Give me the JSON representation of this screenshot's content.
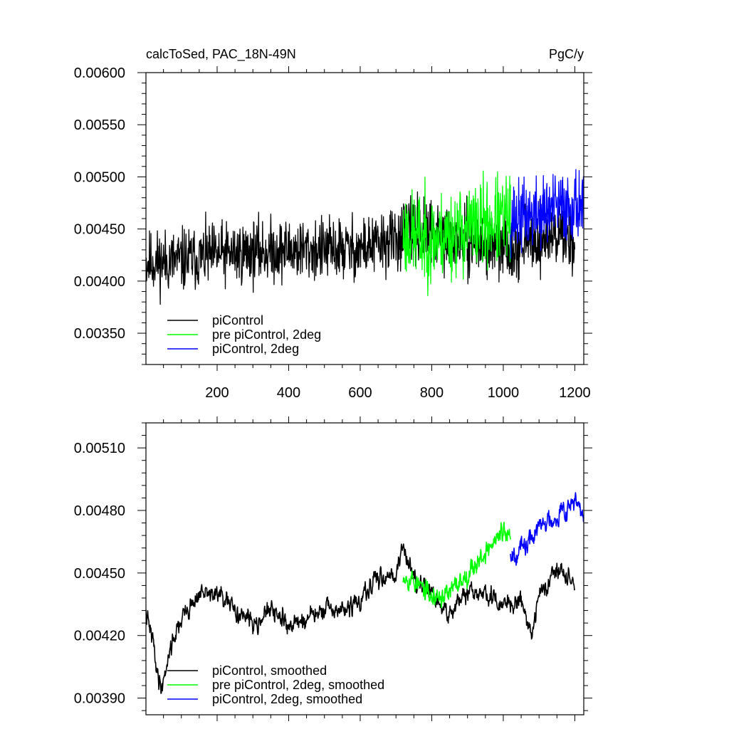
{
  "chart_data": [
    {
      "type": "line",
      "title": "calcToSed, PAC_18N-49N",
      "units": "PgC/y",
      "xlim": [
        1,
        1225
      ],
      "ylim": [
        0.0032,
        0.006
      ],
      "xticks": [
        200,
        400,
        600,
        800,
        1000,
        1200
      ],
      "xtick_labels": [
        "200",
        "400",
        "600",
        "800",
        "1000",
        "1200"
      ],
      "yticks": [
        0.0035,
        0.004,
        0.0045,
        0.005,
        0.0055,
        0.006
      ],
      "ytick_labels": [
        "0.00350",
        "0.00400",
        "0.00450",
        "0.00500",
        "0.00550",
        "0.00600"
      ],
      "legend_position": "bottom-left",
      "series": [
        {
          "name": "piControl",
          "color": "#000000",
          "x_start": 1,
          "x_end": 1200,
          "anchors_x": [
            1,
            100,
            200,
            300,
            400,
            500,
            600,
            650,
            700,
            720,
            760,
            800,
            850,
            900,
            950,
            1000,
            1050,
            1100,
            1150,
            1200
          ],
          "anchors_y": [
            0.00418,
            0.0042,
            0.00425,
            0.00428,
            0.0043,
            0.0043,
            0.00431,
            0.00435,
            0.0044,
            0.00445,
            0.00448,
            0.00445,
            0.0044,
            0.00438,
            0.00435,
            0.00433,
            0.00436,
            0.0044,
            0.00445,
            0.0044
          ],
          "noise": 0.00025,
          "seed": 11
        },
        {
          "name": "pre piControl, 2deg",
          "color": "#00ff00",
          "x_start": 720,
          "x_end": 1020,
          "anchors_x": [
            720,
            800,
            900,
            1020
          ],
          "anchors_y": [
            0.00445,
            0.0044,
            0.0045,
            0.0046
          ],
          "noise": 0.00035,
          "seed": 23
        },
        {
          "name": "piControl, 2deg",
          "color": "#0000ff",
          "x_start": 1020,
          "x_end": 1225,
          "anchors_x": [
            1020,
            1100,
            1150,
            1225
          ],
          "anchors_y": [
            0.0046,
            0.00465,
            0.0047,
            0.00475
          ],
          "noise": 0.00028,
          "seed": 37
        }
      ]
    },
    {
      "type": "line",
      "title": "",
      "xlim": [
        1,
        1225
      ],
      "ylim": [
        0.00382,
        0.00522
      ],
      "xticks": [
        200,
        400,
        600,
        800,
        1000,
        1200
      ],
      "xtick_labels": [],
      "yticks": [
        0.0039,
        0.0042,
        0.0045,
        0.0048,
        0.0051
      ],
      "ytick_labels": [
        "0.00390",
        "0.00420",
        "0.00450",
        "0.00480",
        "0.00510"
      ],
      "legend_position": "bottom-left",
      "series": [
        {
          "name": "piControl, smoothed",
          "color": "#000000",
          "x_start": 1,
          "x_end": 1200,
          "anchors_x": [
            1,
            20,
            35,
            45,
            70,
            100,
            150,
            200,
            250,
            300,
            350,
            400,
            450,
            500,
            550,
            600,
            650,
            700,
            720,
            760,
            800,
            840,
            900,
            950,
            1000,
            1050,
            1080,
            1100,
            1150,
            1200
          ],
          "anchors_y": [
            0.0043,
            0.00418,
            0.004,
            0.00395,
            0.00415,
            0.00428,
            0.0044,
            0.0044,
            0.00432,
            0.00426,
            0.00432,
            0.00425,
            0.00428,
            0.00432,
            0.00432,
            0.00436,
            0.00448,
            0.0045,
            0.00462,
            0.00445,
            0.0044,
            0.0043,
            0.0044,
            0.0044,
            0.00434,
            0.00438,
            0.0042,
            0.0044,
            0.00452,
            0.00445
          ],
          "noise": 7e-05,
          "seed": 41
        },
        {
          "name": "pre piControl, 2deg, smoothed",
          "color": "#00ff00",
          "x_start": 720,
          "x_end": 1020,
          "anchors_x": [
            720,
            760,
            800,
            850,
            900,
            950,
            1000,
            1020
          ],
          "anchors_y": [
            0.0045,
            0.00445,
            0.00438,
            0.0044,
            0.0045,
            0.0046,
            0.0047,
            0.00465
          ],
          "noise": 8e-05,
          "seed": 53
        },
        {
          "name": "piControl, 2deg, smoothed",
          "color": "#0000ff",
          "x_start": 1020,
          "x_end": 1225,
          "anchors_x": [
            1020,
            1060,
            1100,
            1150,
            1200,
            1225
          ],
          "anchors_y": [
            0.0046,
            0.00462,
            0.00472,
            0.00478,
            0.00485,
            0.00475
          ],
          "noise": 8e-05,
          "seed": 67
        }
      ]
    }
  ]
}
